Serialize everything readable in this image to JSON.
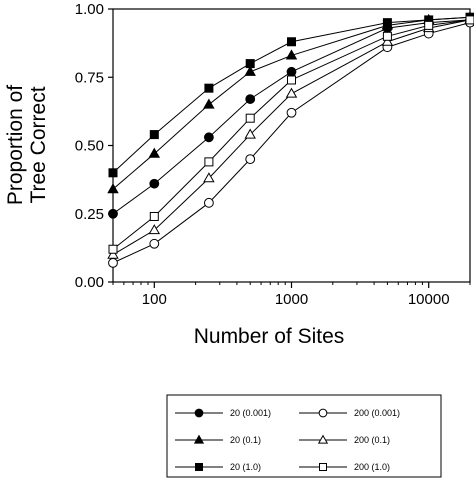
{
  "chart_data": {
    "type": "line",
    "title": "",
    "xlabel": "Number of Sites",
    "ylabel": [
      "Proportion of",
      "Tree Correct"
    ],
    "x_scale": "log",
    "xlim": [
      50,
      20000
    ],
    "ylim": [
      0,
      1
    ],
    "x_ticks": [
      {
        "value": 100,
        "label": "100"
      },
      {
        "value": 1000,
        "label": "1000"
      },
      {
        "value": 10000,
        "label": "10000"
      }
    ],
    "y_ticks": [
      {
        "value": 0,
        "label": "0.00"
      },
      {
        "value": 0.25,
        "label": "0.25"
      },
      {
        "value": 0.5,
        "label": "0.50"
      },
      {
        "value": 0.75,
        "label": "0.75"
      },
      {
        "value": 1,
        "label": "1.00"
      }
    ],
    "grid": false,
    "legend_position": "bottom",
    "x": [
      50,
      100,
      250,
      500,
      1000,
      5000,
      10000,
      20000
    ],
    "series": [
      {
        "name": "20 (0.001)",
        "marker": "circle",
        "filled": true,
        "values": [
          0.25,
          0.36,
          0.53,
          0.67,
          0.77,
          0.93,
          0.95,
          0.96
        ]
      },
      {
        "name": "20 (0.1)",
        "marker": "triangle",
        "filled": true,
        "values": [
          0.34,
          0.47,
          0.65,
          0.77,
          0.83,
          0.94,
          0.96,
          0.97
        ]
      },
      {
        "name": "20 (1.0)",
        "marker": "square",
        "filled": true,
        "values": [
          0.4,
          0.54,
          0.71,
          0.8,
          0.88,
          0.95,
          0.96,
          0.97
        ]
      },
      {
        "name": "200 (0.001)",
        "marker": "circle",
        "filled": false,
        "values": [
          0.07,
          0.14,
          0.29,
          0.45,
          0.62,
          0.86,
          0.91,
          0.95
        ]
      },
      {
        "name": "200 (0.1)",
        "marker": "triangle",
        "filled": false,
        "values": [
          0.1,
          0.19,
          0.38,
          0.54,
          0.69,
          0.88,
          0.93,
          0.96
        ]
      },
      {
        "name": "200 (1.0)",
        "marker": "square",
        "filled": false,
        "values": [
          0.12,
          0.24,
          0.44,
          0.6,
          0.74,
          0.9,
          0.94,
          0.96
        ]
      }
    ]
  }
}
